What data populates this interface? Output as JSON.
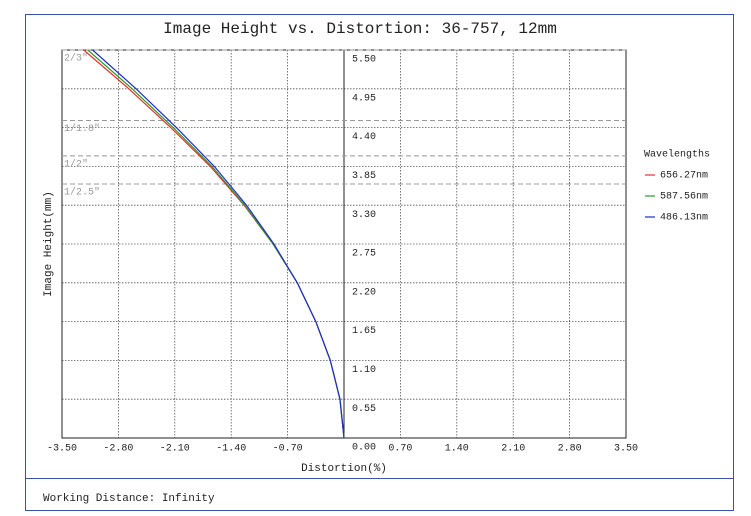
{
  "chart_data": {
    "type": "line",
    "title": "Image Height vs. Distortion: 36-757, 12mm",
    "x_label": "Distortion(%)",
    "y_label": "Image Height(mm)",
    "legend_title": "Wavelengths",
    "footer": "Working Distance: Infinity",
    "xlim": [
      -3.5,
      3.5
    ],
    "ylim": [
      0,
      5.5
    ],
    "xticks": [
      {
        "value": -3.5,
        "label": "-3.50"
      },
      {
        "value": -2.8,
        "label": "-2.80"
      },
      {
        "value": -2.1,
        "label": "-2.10"
      },
      {
        "value": -1.4,
        "label": "-1.40"
      },
      {
        "value": -0.7,
        "label": "-0.70"
      },
      {
        "value": 0.7,
        "label": "0.70"
      },
      {
        "value": 1.4,
        "label": "1.40"
      },
      {
        "value": 2.1,
        "label": "2.10"
      },
      {
        "value": 2.8,
        "label": "2.80"
      },
      {
        "value": 3.5,
        "label": "3.50"
      }
    ],
    "yticks": [
      {
        "value": 0,
        "label": "0.00"
      },
      0.55,
      {
        "value": 1.1,
        "label": "1.10"
      },
      1.65,
      {
        "value": 2.2,
        "label": "2.20"
      },
      2.75,
      {
        "value": 3.3,
        "label": "3.30"
      },
      3.85,
      {
        "value": 4.4,
        "label": "4.40"
      },
      4.95,
      {
        "value": 5.5,
        "label": "5.50"
      }
    ],
    "grid": true,
    "sensors": [
      {
        "label": "2/3\"",
        "value": 5.5
      },
      {
        "label": "1/1.8\"",
        "value": 4.5
      },
      {
        "label": "1/2\"",
        "value": 4.0
      },
      {
        "label": "1/2.5\"",
        "value": 3.6
      }
    ],
    "series": [
      {
        "name": "656.27nm",
        "color": "#e8312a",
        "x": [
          0,
          -0.05,
          -0.17,
          -0.35,
          -0.58,
          -0.88,
          -1.24,
          -1.66,
          -2.15,
          -2.67,
          -3.23
        ],
        "values": [
          0,
          0.55,
          1.1,
          1.65,
          2.2,
          2.75,
          3.3,
          3.85,
          4.4,
          4.95,
          5.5
        ]
      },
      {
        "name": "587.56nm",
        "color": "#2a9a2a",
        "x": [
          0,
          -0.05,
          -0.17,
          -0.35,
          -0.58,
          -0.88,
          -1.23,
          -1.64,
          -2.12,
          -2.63,
          -3.18
        ],
        "values": [
          0,
          0.55,
          1.1,
          1.65,
          2.2,
          2.75,
          3.3,
          3.85,
          4.4,
          4.95,
          5.5
        ]
      },
      {
        "name": "486.13nm",
        "color": "#1f2fc8",
        "x": [
          0,
          -0.05,
          -0.17,
          -0.35,
          -0.58,
          -0.87,
          -1.21,
          -1.61,
          -2.08,
          -2.58,
          -3.12
        ],
        "values": [
          0,
          0.55,
          1.1,
          1.65,
          2.2,
          2.75,
          3.3,
          3.85,
          4.4,
          4.95,
          5.5
        ]
      }
    ]
  }
}
